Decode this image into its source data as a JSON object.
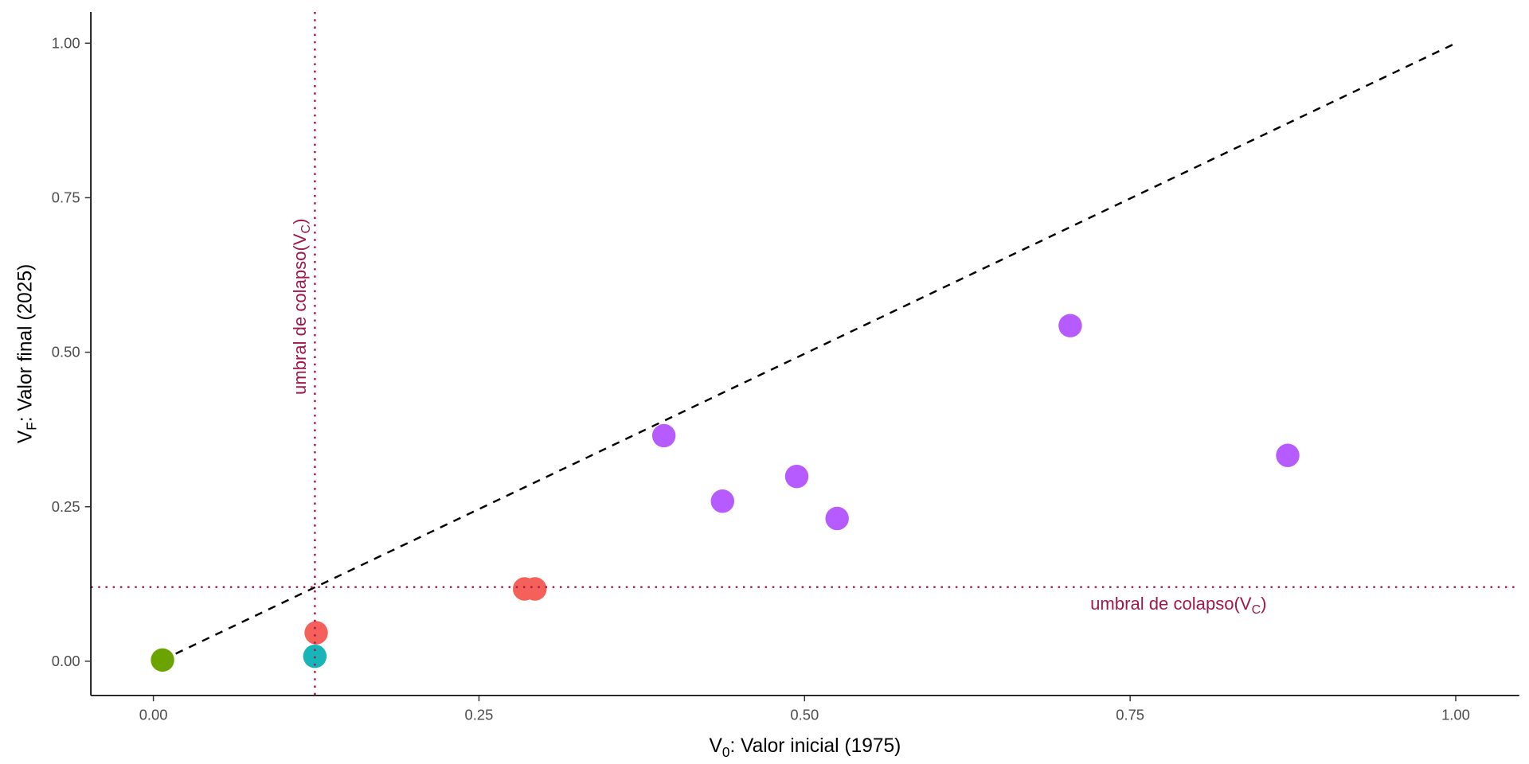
{
  "chart_data": {
    "type": "scatter",
    "title": "",
    "xlabel": {
      "main": "V",
      "sub": "0",
      "rest": ": Valor inicial (1975)"
    },
    "ylabel": {
      "main": "V",
      "sub": "F",
      "rest": ": Valor final (2025)"
    },
    "xlim": [
      -0.05,
      1.05
    ],
    "ylim": [
      -0.05,
      1.05
    ],
    "x_ticks": [
      "0.00",
      "0.25",
      "0.50",
      "0.75",
      "1.00"
    ],
    "y_ticks": [
      "0.00",
      "0.25",
      "0.50",
      "0.75",
      "1.00"
    ],
    "grid": false,
    "points": [
      {
        "x": 0.007,
        "y": 0.002,
        "color": "#6BA300"
      },
      {
        "x": 0.124,
        "y": 0.008,
        "color": "#17B5B8"
      },
      {
        "x": 0.125,
        "y": 0.046,
        "color": "#F5605A"
      },
      {
        "x": 0.285,
        "y": 0.117,
        "color": "#F5605A"
      },
      {
        "x": 0.293,
        "y": 0.117,
        "color": "#F5605A"
      },
      {
        "x": 0.392,
        "y": 0.365,
        "color": "#B55BFF"
      },
      {
        "x": 0.437,
        "y": 0.259,
        "color": "#B55BFF"
      },
      {
        "x": 0.494,
        "y": 0.299,
        "color": "#B55BFF"
      },
      {
        "x": 0.525,
        "y": 0.231,
        "color": "#B55BFF"
      },
      {
        "x": 0.704,
        "y": 0.543,
        "color": "#B55BFF"
      },
      {
        "x": 0.871,
        "y": 0.333,
        "color": "#B55BFF"
      }
    ],
    "reference_line": {
      "from": [
        0.007,
        0.002
      ],
      "to": [
        1.0,
        1.0
      ],
      "style": "dashed",
      "color": "#000000"
    },
    "threshold": {
      "value_x": 0.124,
      "value_y": 0.12,
      "color": "#A0184E",
      "label": {
        "main": "umbral de colapso(V",
        "sub": "C",
        "end": ")"
      }
    }
  }
}
